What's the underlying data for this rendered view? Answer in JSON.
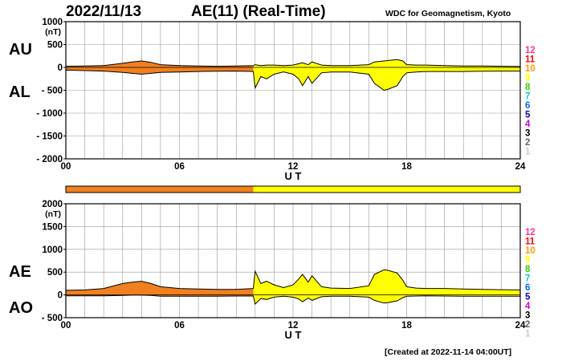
{
  "header": {
    "date": "2022/11/13",
    "title": "AE(11) (Real-Time)",
    "source": "WDC for Geomagnetism, Kyoto"
  },
  "footer": {
    "created": "[Created at 2022-11-14 04:00UT]"
  },
  "colors": {
    "before": "#f08020",
    "after": "#ffff00",
    "line": "#000000",
    "grid": "#999999"
  },
  "chart_data": [
    {
      "type": "area",
      "name": "AU/AL",
      "panel_labels": [
        "AU",
        "AL"
      ],
      "unit_label": "(nT)",
      "xlabel": "U T",
      "xlim": [
        0,
        24
      ],
      "xticks": [
        "00",
        "06",
        "12",
        "18",
        "24"
      ],
      "ylim": [
        -2000,
        1000
      ],
      "yticks": [
        "1000",
        "500",
        "0",
        "- 500",
        "- 1000",
        "- 1500",
        "- 2000"
      ],
      "transition_hour": 9.9,
      "x": [
        0,
        1,
        2,
        3,
        3.5,
        4,
        4.5,
        5,
        6,
        7,
        8,
        9,
        9.9,
        10,
        10.3,
        10.6,
        11,
        11.5,
        12,
        12.3,
        12.5,
        12.8,
        13,
        13.5,
        14,
        15,
        16,
        16.3,
        16.8,
        17,
        17.5,
        17.8,
        18,
        18.5,
        19,
        20,
        21,
        22,
        23,
        24
      ],
      "series": [
        {
          "name": "AU",
          "values": [
            25,
            30,
            40,
            90,
            120,
            140,
            110,
            60,
            40,
            30,
            25,
            30,
            40,
            60,
            40,
            50,
            50,
            40,
            50,
            80,
            100,
            60,
            120,
            50,
            40,
            40,
            60,
            120,
            140,
            150,
            170,
            140,
            60,
            50,
            50,
            40,
            30,
            30,
            25,
            20
          ]
        },
        {
          "name": "AL",
          "values": [
            -60,
            -70,
            -80,
            -110,
            -130,
            -150,
            -130,
            -110,
            -100,
            -90,
            -85,
            -80,
            -90,
            -450,
            -200,
            -250,
            -150,
            -100,
            -150,
            -250,
            -400,
            -200,
            -350,
            -120,
            -100,
            -100,
            -150,
            -350,
            -500,
            -480,
            -400,
            -200,
            -120,
            -100,
            -90,
            -90,
            -90,
            -85,
            -80,
            -80
          ]
        }
      ]
    },
    {
      "type": "area",
      "name": "AE/AO",
      "panel_labels": [
        "AE",
        "AO"
      ],
      "unit_label": "(nT)",
      "xlabel": "U T",
      "xlim": [
        0,
        24
      ],
      "xticks": [
        "00",
        "06",
        "12",
        "18",
        "24"
      ],
      "ylim": [
        -500,
        2000
      ],
      "yticks": [
        "2000",
        "1500",
        "1000",
        "500",
        "0",
        "- 500"
      ],
      "transition_hour": 9.9,
      "x": [
        0,
        1,
        2,
        3,
        3.5,
        4,
        4.5,
        5,
        6,
        7,
        8,
        9,
        9.9,
        10,
        10.3,
        10.6,
        11,
        11.5,
        12,
        12.3,
        12.5,
        12.8,
        13,
        13.5,
        14,
        15,
        16,
        16.3,
        16.8,
        17,
        17.5,
        17.8,
        18,
        18.5,
        19,
        20,
        21,
        22,
        23,
        24
      ],
      "series": [
        {
          "name": "AE",
          "values": [
            100,
            110,
            140,
            250,
            280,
            300,
            250,
            180,
            140,
            130,
            120,
            120,
            140,
            520,
            250,
            300,
            220,
            160,
            220,
            350,
            450,
            280,
            420,
            180,
            150,
            140,
            200,
            450,
            550,
            540,
            480,
            320,
            180,
            150,
            140,
            140,
            130,
            120,
            115,
            110
          ]
        },
        {
          "name": "AO",
          "values": [
            -20,
            -20,
            -20,
            -10,
            -5,
            -5,
            -10,
            -30,
            -30,
            -30,
            -30,
            -25,
            -25,
            -200,
            -80,
            -100,
            -50,
            -30,
            -50,
            -90,
            -150,
            -70,
            -120,
            -40,
            -30,
            -30,
            -50,
            -120,
            -180,
            -170,
            -130,
            -60,
            -30,
            -25,
            -20,
            -25,
            -30,
            -28,
            -28,
            -30
          ]
        }
      ]
    }
  ],
  "bar": {
    "transition_hour": 9.9
  },
  "legend": {
    "labels": [
      "12",
      "11",
      "10",
      "9",
      "8",
      "7",
      "6",
      "5",
      "4",
      "3",
      "2",
      "1"
    ],
    "colors": [
      "#ff3399",
      "#ff0000",
      "#ff9900",
      "#ffff00",
      "#33cc00",
      "#00cccc",
      "#0066ff",
      "#0000cc",
      "#cc00cc",
      "#000000",
      "#666666",
      "#cccccc"
    ]
  }
}
